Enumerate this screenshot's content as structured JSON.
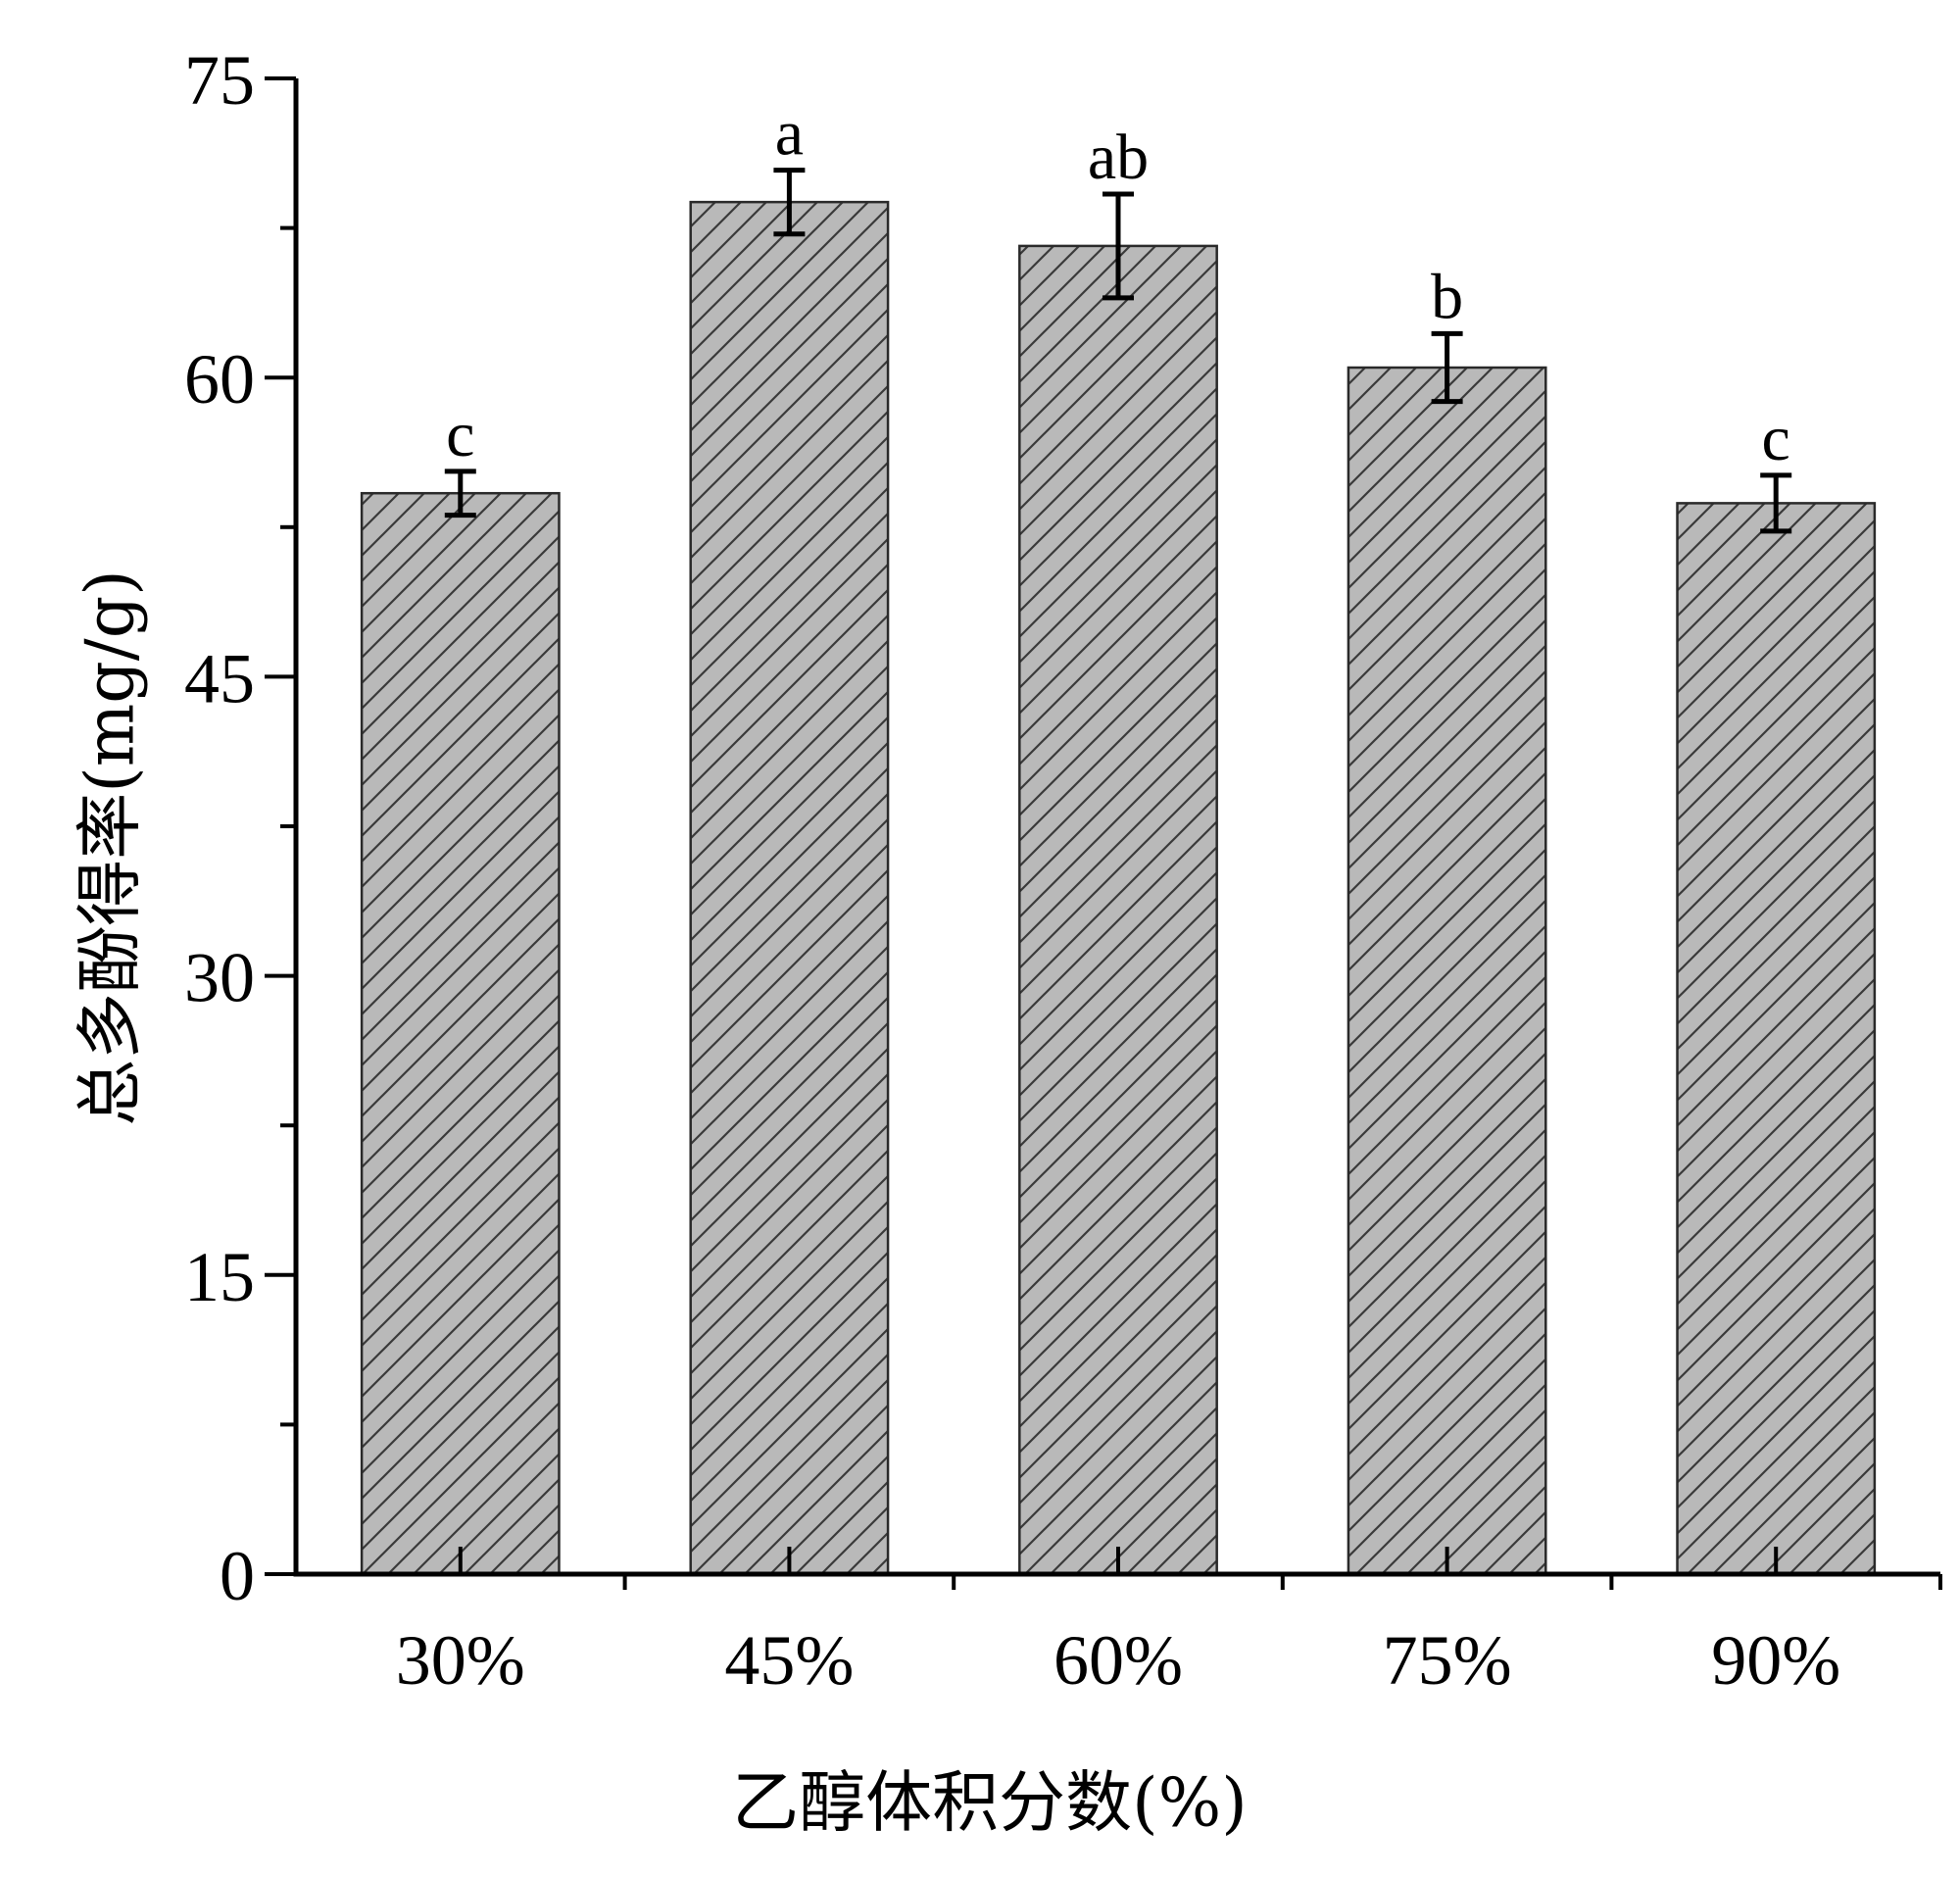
{
  "chart_data": {
    "type": "bar",
    "title": "",
    "xlabel": "乙醇体积分数(%)",
    "ylabel": "总多酚得率(mg/g)",
    "categories": [
      "30%",
      "45%",
      "60%",
      "75%",
      "90%"
    ],
    "values": [
      54.2,
      68.8,
      66.6,
      60.5,
      53.7
    ],
    "errors": [
      1.1,
      1.6,
      2.6,
      1.7,
      1.4
    ],
    "significance_labels": [
      "c",
      "a",
      "ab",
      "b",
      "c"
    ],
    "ylim": [
      0,
      75
    ],
    "y_ticks": [
      "0",
      "15",
      "30",
      "45",
      "60",
      "75"
    ],
    "y_tick_values": [
      0,
      15,
      30,
      45,
      60,
      75
    ],
    "y_minor_tick_values": [
      7.5,
      22.5,
      37.5,
      52.5,
      67.5
    ],
    "grid": false,
    "legend": "none",
    "colors": {
      "bar_fill": "#b9b9b9",
      "hatch": "#3a3a3a",
      "axis": "#000000"
    },
    "bar_pattern": "diagonal-hatch"
  }
}
